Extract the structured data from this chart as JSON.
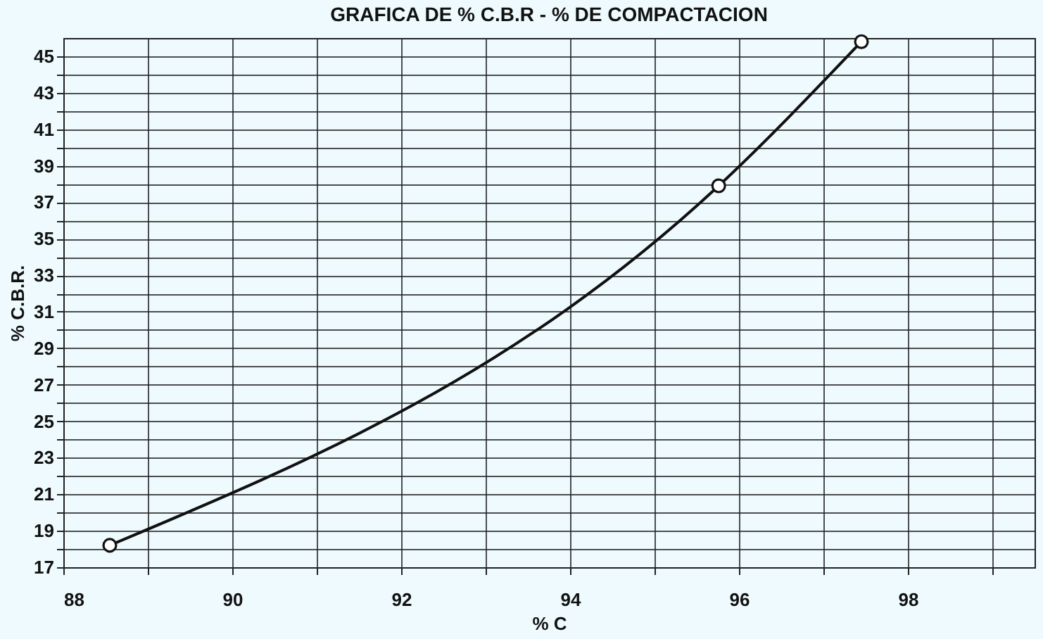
{
  "chart_data": {
    "type": "line",
    "title": "GRAFICA DE % C.B.R - % DE COMPACTACION",
    "xlabel": "% C",
    "ylabel": "% C.B.R.",
    "x": [
      88.55,
      95.76,
      97.45
    ],
    "series": [
      {
        "color": "#111111",
        "values": [
          18.2,
          37.9,
          45.8
        ]
      }
    ],
    "xlim": [
      88,
      99.5
    ],
    "xticks": [
      88,
      {
        "value": 89,
        "label": null
      },
      90,
      {
        "value": 91,
        "label": null
      },
      92,
      {
        "value": 93,
        "label": null
      },
      94,
      {
        "value": 95,
        "label": null
      },
      96,
      {
        "value": 97,
        "label": null
      },
      98,
      {
        "value": 99,
        "label": null
      }
    ],
    "ylim": [
      17,
      46
    ],
    "yticks": [
      17,
      {
        "value": 18,
        "label": null
      },
      19,
      {
        "value": 20,
        "label": null
      },
      21,
      {
        "value": 22,
        "label": null
      },
      23,
      {
        "value": 24,
        "label": null
      },
      25,
      {
        "value": 26,
        "label": null
      },
      27,
      {
        "value": 28,
        "label": null
      },
      29,
      {
        "value": 30,
        "label": null
      },
      31,
      {
        "value": 32,
        "label": null
      },
      33,
      {
        "value": 34,
        "label": null
      },
      35,
      {
        "value": 36,
        "label": null
      },
      37,
      {
        "value": 38,
        "label": null
      },
      39,
      {
        "value": 40,
        "label": null
      },
      41,
      {
        "value": 42,
        "label": null
      },
      43,
      {
        "value": 44,
        "label": null
      },
      45
    ],
    "grid": true,
    "marker": "circle",
    "line_style": "solid",
    "legend": false
  }
}
